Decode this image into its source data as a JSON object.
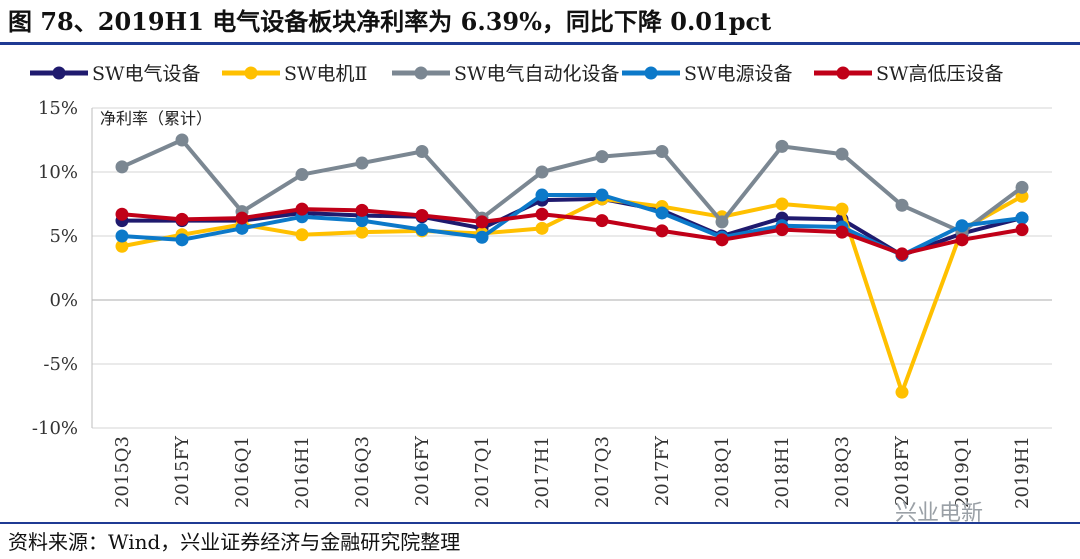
{
  "header": {
    "title": "图 78、2019H1 电气设备板块净利率为 6.39%，同比下降 0.01pct"
  },
  "footer": {
    "source": "资料来源：Wind，兴业证券经济与金融研究院整理",
    "watermark": "兴业电新"
  },
  "chart_data": {
    "type": "line",
    "ylabel": "净利率（累计）",
    "ylim": [
      -10,
      15
    ],
    "yticks": [
      "15%",
      "10%",
      "5%",
      "0%",
      "-5%",
      "-10%"
    ],
    "yticks_values": [
      15,
      10,
      5,
      0,
      -5,
      -10
    ],
    "grid": "horizontal",
    "legend_position": "top",
    "categories": [
      "2015Q3",
      "2015FY",
      "2016Q1",
      "2016H1",
      "2016Q3",
      "2016FY",
      "2017Q1",
      "2017H1",
      "2017Q3",
      "2017FY",
      "2018Q1",
      "2018H1",
      "2018Q3",
      "2018FY",
      "2019Q1",
      "2019H1"
    ],
    "series": [
      {
        "name": "SW电气设备",
        "color": "#1f1a6e",
        "values": [
          6.2,
          6.2,
          6.2,
          6.8,
          6.6,
          6.5,
          5.6,
          7.8,
          7.9,
          7.0,
          5.0,
          6.4,
          6.3,
          3.5,
          5.2,
          6.4
        ]
      },
      {
        "name": "SW电机Ⅱ",
        "color": "#ffc000",
        "values": [
          4.2,
          5.1,
          5.9,
          5.1,
          5.3,
          5.4,
          5.2,
          5.6,
          7.9,
          7.3,
          6.5,
          7.5,
          7.1,
          -7.2,
          5.5,
          8.1
        ]
      },
      {
        "name": "SW电气自动化设备",
        "color": "#7b8792",
        "values": [
          10.4,
          12.5,
          6.9,
          9.8,
          10.7,
          11.6,
          6.4,
          10.0,
          11.2,
          11.6,
          6.1,
          12.0,
          11.4,
          7.4,
          5.3,
          8.8
        ]
      },
      {
        "name": "SW电源设备",
        "color": "#0c79c9",
        "values": [
          5.0,
          4.7,
          5.6,
          6.5,
          6.2,
          5.5,
          4.9,
          8.2,
          8.2,
          6.8,
          4.9,
          5.8,
          5.7,
          3.5,
          5.8,
          6.4
        ]
      },
      {
        "name": "SW高低压设备",
        "color": "#c00018",
        "values": [
          6.7,
          6.3,
          6.4,
          7.1,
          7.0,
          6.6,
          6.1,
          6.7,
          6.2,
          5.4,
          4.7,
          5.5,
          5.3,
          3.6,
          4.7,
          5.5
        ]
      }
    ]
  }
}
